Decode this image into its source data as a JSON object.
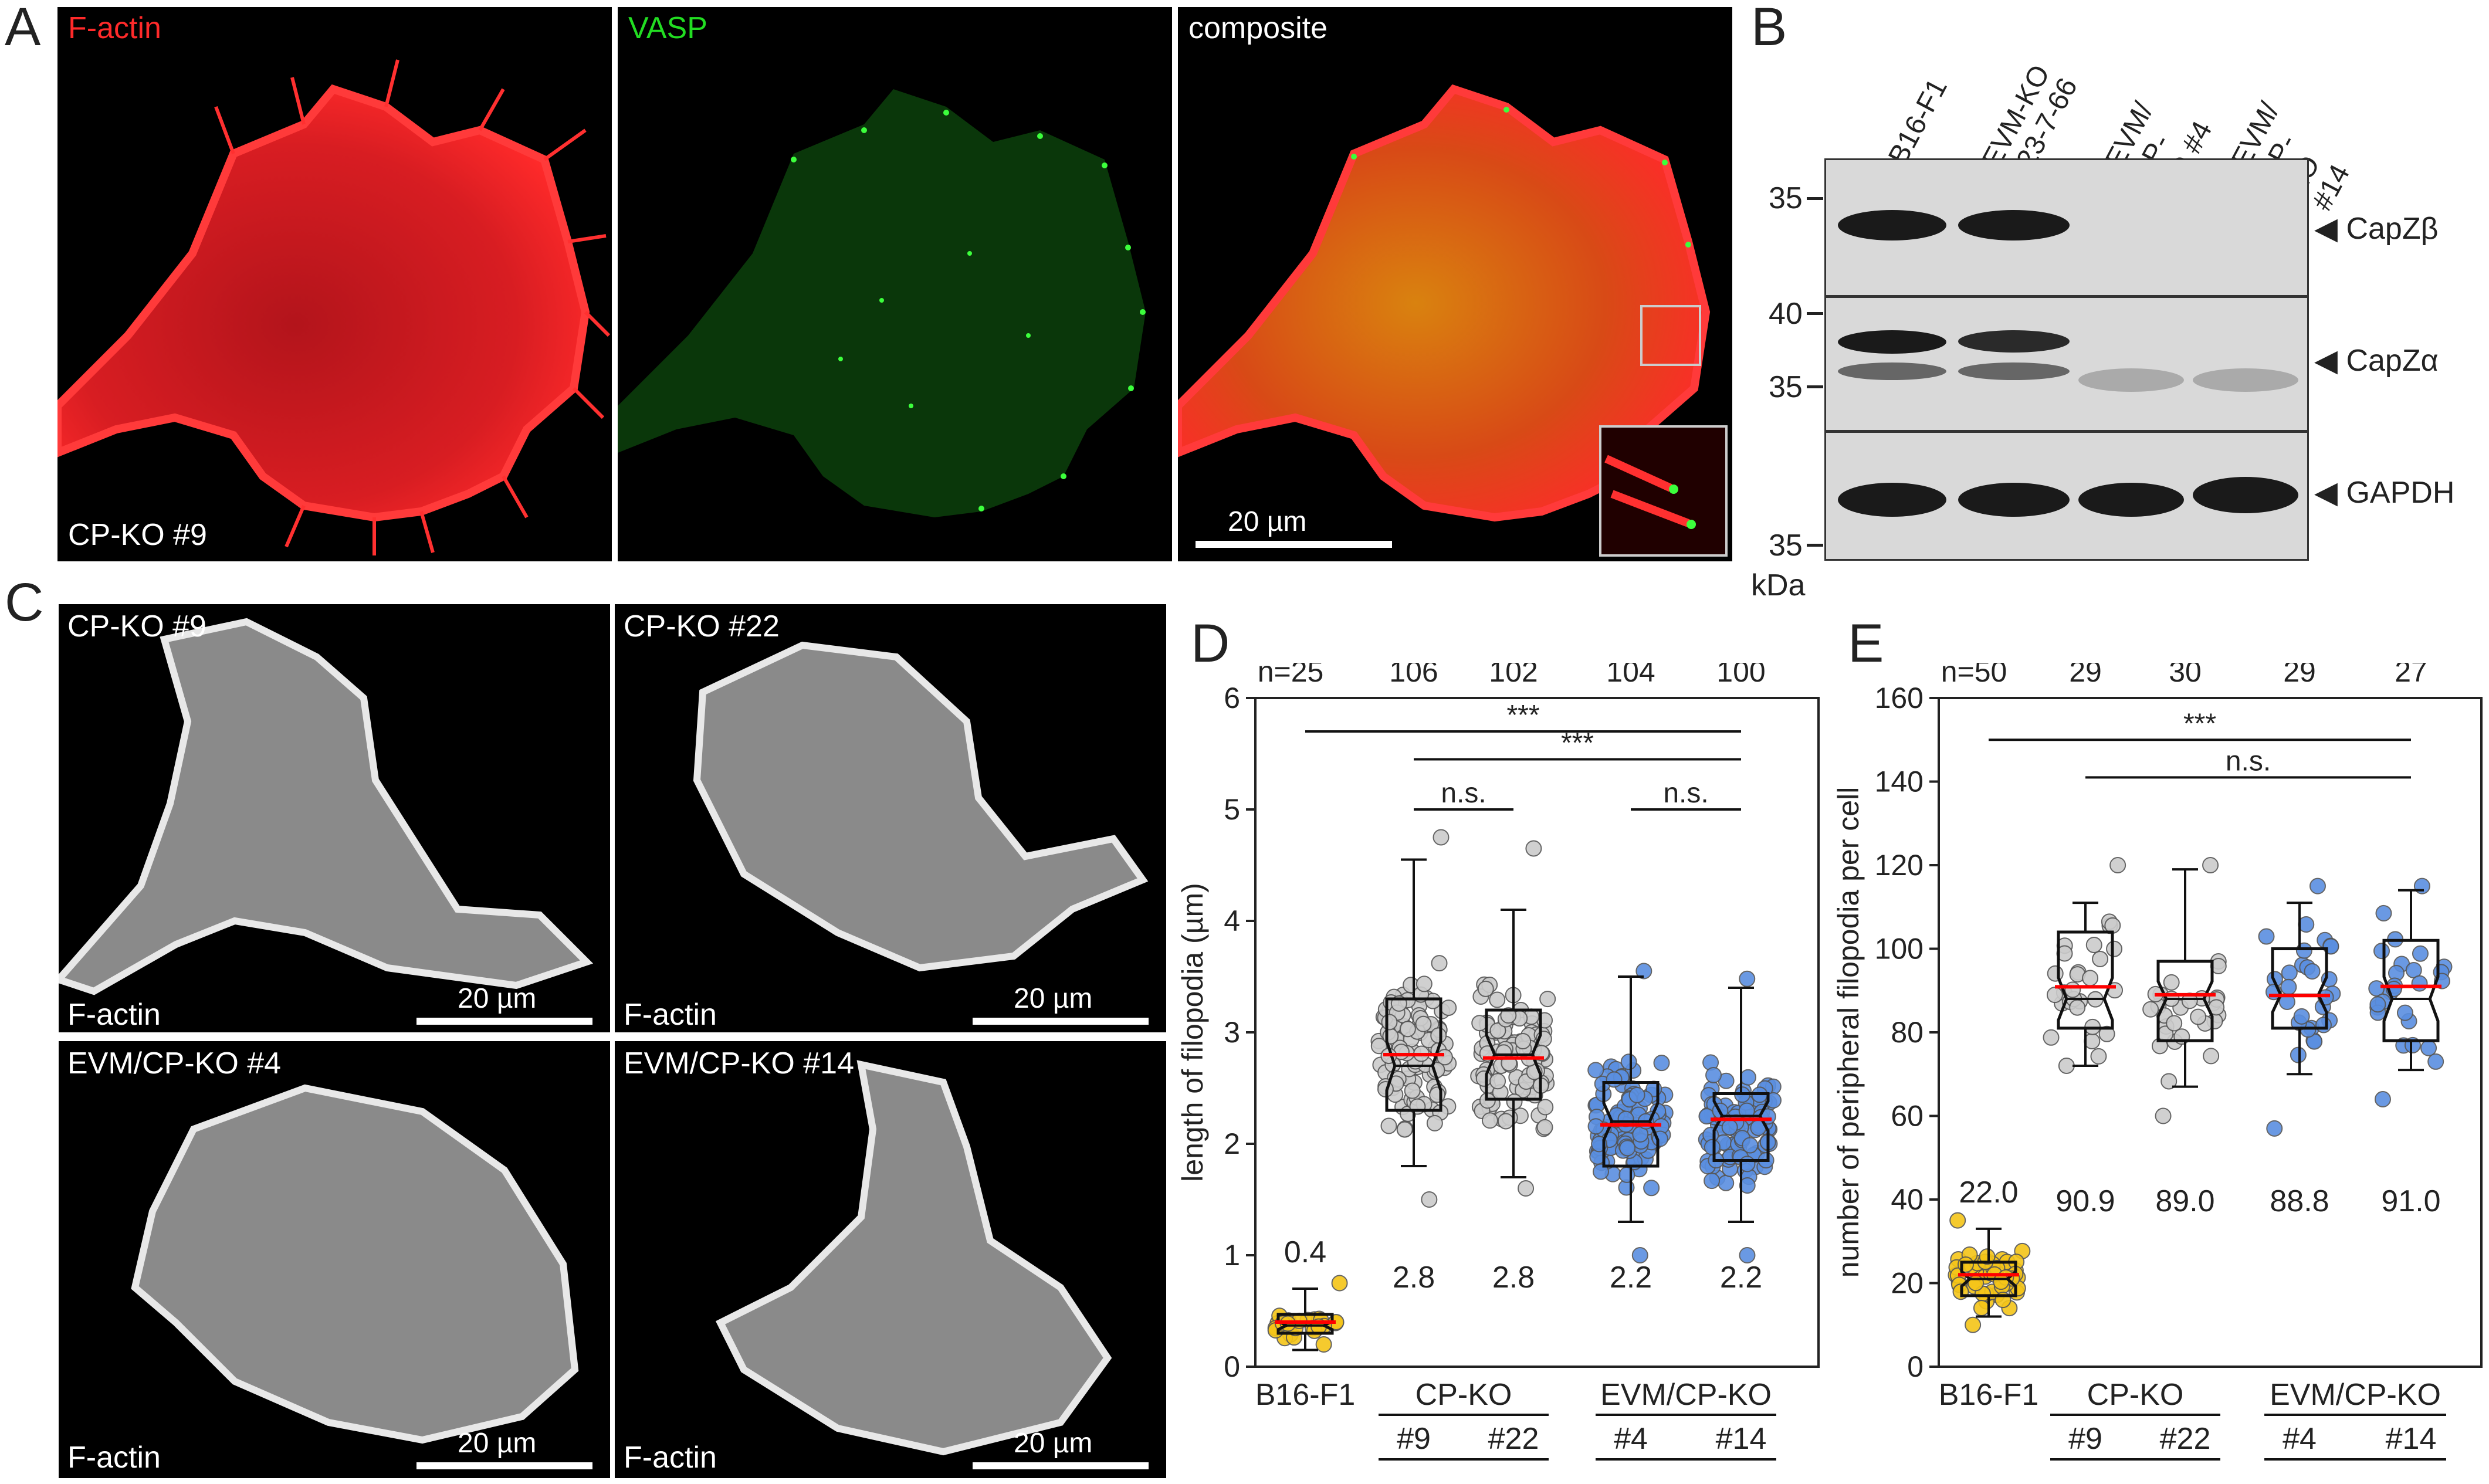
{
  "panels": {
    "A": {
      "letter": "A",
      "channels": [
        {
          "label": "F-actin",
          "color": "#ff1e1e"
        },
        {
          "label": "VASP",
          "color": "#22dd22"
        },
        {
          "label": "composite",
          "color": "#ffffff"
        }
      ],
      "cell_label": "CP-KO #9",
      "scale": "20 µm"
    },
    "B": {
      "letter": "B",
      "lanes": [
        "B16-F1",
        "EVM-KO #23-7-66",
        "EVM/ CP-KO #4",
        "EVM/ CP-KO #14"
      ],
      "blots": [
        {
          "target": "CapZβ",
          "markers": [
            "35"
          ]
        },
        {
          "target": "CapZα",
          "markers": [
            "40",
            "35"
          ]
        },
        {
          "target": "GAPDH",
          "markers": [
            "35"
          ]
        }
      ],
      "unit": "kDa"
    },
    "C": {
      "letter": "C",
      "images": [
        {
          "title": "CP-KO #9",
          "stain": "F-actin",
          "scale": "20 µm"
        },
        {
          "title": "CP-KO #22",
          "stain": "F-actin",
          "scale": "20 µm"
        },
        {
          "title": "EVM/CP-KO #4",
          "stain": "F-actin",
          "scale": "20 µm"
        },
        {
          "title": "EVM/CP-KO #14",
          "stain": "F-actin",
          "scale": "20 µm"
        }
      ]
    },
    "D": {
      "letter": "D"
    },
    "E": {
      "letter": "E"
    }
  },
  "chart_data": [
    {
      "panel": "D",
      "type": "box",
      "ylabel": "length of filopodia (µm)",
      "ylim": [
        0,
        6
      ],
      "yticks": [
        0,
        1,
        2,
        3,
        4,
        5,
        6
      ],
      "categories": [
        "B16-F1",
        "#9",
        "#22",
        "#4",
        "#14"
      ],
      "groups": [
        {
          "label": "CP-KO",
          "members": [
            "#9",
            "#22"
          ]
        },
        {
          "label": "EVM/CP-KO",
          "members": [
            "#4",
            "#14"
          ]
        }
      ],
      "n_labels": [
        "n=25",
        "106",
        "102",
        "104",
        "100"
      ],
      "means": [
        "0.4",
        "2.8",
        "2.8",
        "2.2",
        "2.2"
      ],
      "point_colors": [
        "#f5c518",
        "#cccccc",
        "#cccccc",
        "#5a8fe0",
        "#5a8fe0"
      ],
      "mean_line_color": "#ff0000",
      "boxes": [
        {
          "q1": 0.3,
          "median": 0.37,
          "q3": 0.47,
          "whisker_low": 0.15,
          "whisker_high": 0.7,
          "mean": 0.4,
          "n": 25,
          "min": 0.2,
          "max": 0.75
        },
        {
          "q1": 2.3,
          "median": 2.7,
          "q3": 3.3,
          "whisker_low": 1.8,
          "whisker_high": 4.55,
          "mean": 2.8,
          "n": 106,
          "min": 1.5,
          "max": 4.75
        },
        {
          "q1": 2.4,
          "median": 2.8,
          "q3": 3.2,
          "whisker_low": 1.7,
          "whisker_high": 4.1,
          "mean": 2.77,
          "n": 102,
          "min": 1.6,
          "max": 4.65
        },
        {
          "q1": 1.8,
          "median": 2.2,
          "q3": 2.55,
          "whisker_low": 1.3,
          "whisker_high": 3.5,
          "mean": 2.17,
          "n": 104,
          "min": 1.0,
          "max": 3.55
        },
        {
          "q1": 1.85,
          "median": 2.25,
          "q3": 2.45,
          "whisker_low": 1.3,
          "whisker_high": 3.4,
          "mean": 2.22,
          "n": 100,
          "min": 1.0,
          "max": 3.48
        }
      ],
      "significance": [
        {
          "from": 0,
          "to": 4,
          "label": "***",
          "level": 5.7
        },
        {
          "from": 1,
          "to": 4,
          "label": "***",
          "level": 5.45
        },
        {
          "from": 1,
          "to": 2,
          "label": "n.s.",
          "level": 5.0
        },
        {
          "from": 3,
          "to": 4,
          "label": "n.s.",
          "level": 5.0
        }
      ]
    },
    {
      "panel": "E",
      "type": "box",
      "ylabel": "number of peripheral filopodia per cell",
      "ylim": [
        0,
        160
      ],
      "yticks": [
        0,
        20,
        40,
        60,
        80,
        100,
        120,
        140,
        160
      ],
      "categories": [
        "B16-F1",
        "#9",
        "#22",
        "#4",
        "#14"
      ],
      "groups": [
        {
          "label": "CP-KO",
          "members": [
            "#9",
            "#22"
          ]
        },
        {
          "label": "EVM/CP-KO",
          "members": [
            "#4",
            "#14"
          ]
        }
      ],
      "n_labels": [
        "n=50",
        "29",
        "30",
        "29",
        "27"
      ],
      "means": [
        "22.0",
        "90.9",
        "89.0",
        "88.8",
        "91.0"
      ],
      "point_colors": [
        "#f5c518",
        "#cccccc",
        "#cccccc",
        "#5a8fe0",
        "#5a8fe0"
      ],
      "mean_line_color": "#ff0000",
      "boxes": [
        {
          "q1": 17,
          "median": 21,
          "q3": 25,
          "whisker_low": 12,
          "whisker_high": 33,
          "mean": 22.0,
          "n": 50,
          "min": 10,
          "max": 35
        },
        {
          "q1": 81,
          "median": 88,
          "q3": 104,
          "whisker_low": 72,
          "whisker_high": 111,
          "mean": 90.9,
          "n": 29,
          "min": 72,
          "max": 120
        },
        {
          "q1": 78,
          "median": 88,
          "q3": 97,
          "whisker_low": 67,
          "whisker_high": 119,
          "mean": 89.0,
          "n": 30,
          "min": 60,
          "max": 120
        },
        {
          "q1": 81,
          "median": 89,
          "q3": 100,
          "whisker_low": 70,
          "whisker_high": 111,
          "mean": 88.8,
          "n": 29,
          "min": 57,
          "max": 115
        },
        {
          "q1": 78,
          "median": 88,
          "q3": 102,
          "whisker_low": 71,
          "whisker_high": 114,
          "mean": 91.0,
          "n": 27,
          "min": 64,
          "max": 115
        }
      ],
      "significance": [
        {
          "from": 0,
          "to": 4,
          "label": "***",
          "level": 150
        },
        {
          "from": 1,
          "to": 4,
          "label": "n.s.",
          "level": 141
        }
      ]
    }
  ]
}
